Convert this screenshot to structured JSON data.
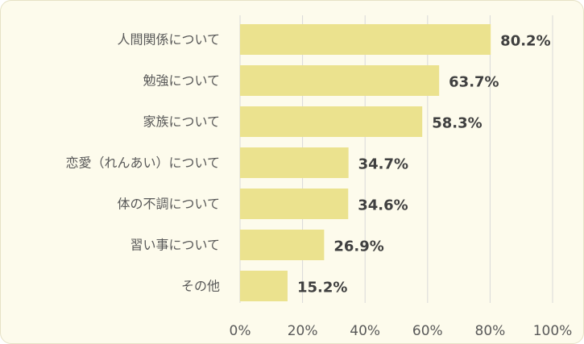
{
  "chart_data": {
    "type": "bar",
    "orientation": "horizontal",
    "categories": [
      "人間関係について",
      "勉強について",
      "家族について",
      "恋愛（れんあい）について",
      "体の不調について",
      "習い事について",
      "その他"
    ],
    "values": [
      80.2,
      63.7,
      58.3,
      34.7,
      34.6,
      26.9,
      15.2
    ],
    "value_labels": [
      "80.2%",
      "63.7%",
      "58.3%",
      "34.7%",
      "34.6%",
      "26.9%",
      "15.2%"
    ],
    "x_ticks": [
      0,
      20,
      40,
      60,
      80,
      100
    ],
    "x_tick_labels": [
      "0%",
      "20%",
      "40%",
      "60%",
      "80%",
      "100%"
    ],
    "xlim": [
      0,
      100
    ],
    "grid": true,
    "legend": "none",
    "colors": {
      "bar": "#ebe28e",
      "grid": "#d9d9d9",
      "background": "#fdfbec",
      "border": "#e6e2c6"
    }
  }
}
